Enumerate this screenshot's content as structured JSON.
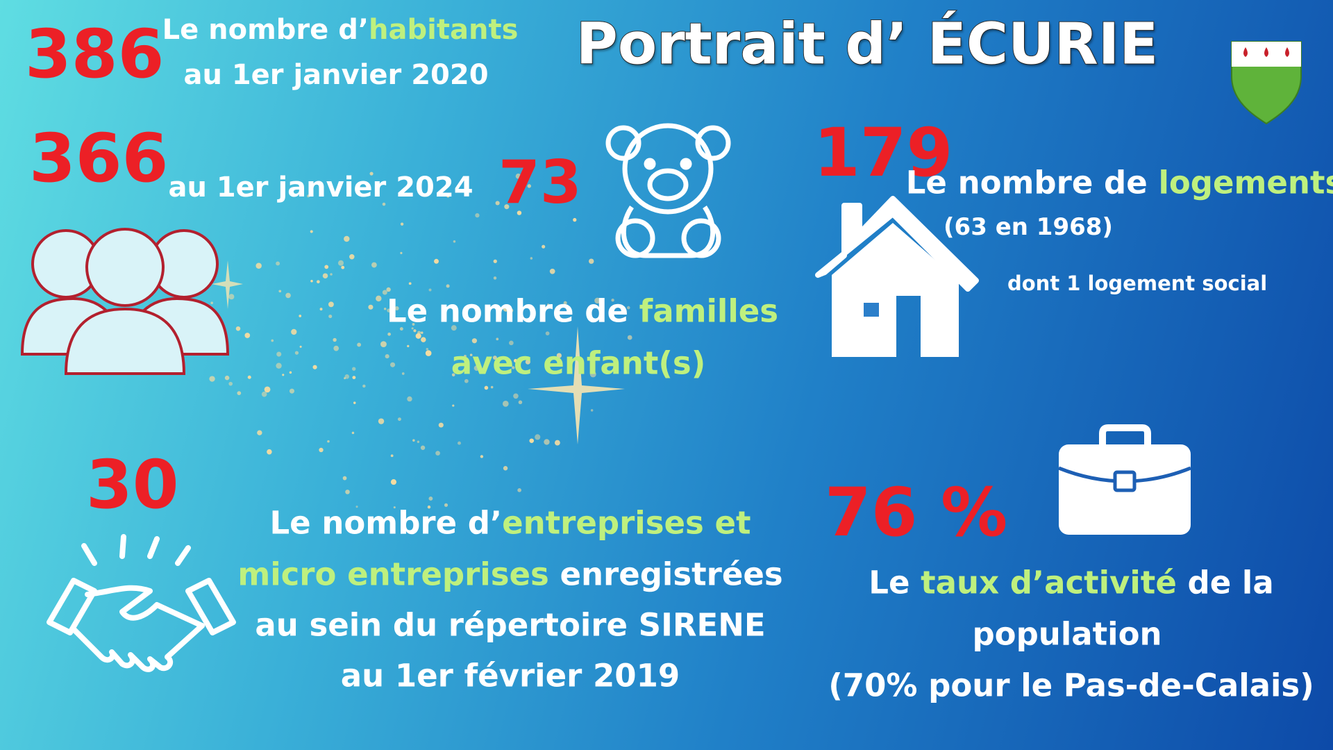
{
  "title": "Portrait d’ ÉCURIE",
  "population": {
    "count_2020": "386",
    "line1": [
      "Le nombre d’",
      "habitants"
    ],
    "line2": "au 1er janvier 2020",
    "count_2024": "366",
    "line3": "au 1er janvier 2024"
  },
  "families": {
    "count": "73",
    "line1": [
      "Le nombre de ",
      "familles"
    ],
    "line2": "avec enfant(s)"
  },
  "housing": {
    "count": "179",
    "line1": [
      "Le nombre de ",
      "logements"
    ],
    "line2": "(63 en 1968)",
    "line3": "dont 1 logement social"
  },
  "businesses": {
    "count": "30",
    "lines": [
      [
        "Le nombre d’",
        "entreprises et"
      ],
      [
        "micro entreprises",
        " enregistrées"
      ],
      [
        "au sein du répertoire SIRENE"
      ],
      [
        "au 1er février 2019"
      ]
    ]
  },
  "activity": {
    "count": "76 %",
    "lines": [
      [
        "Le ",
        "taux d’activité",
        " de la"
      ],
      [
        "population"
      ],
      [
        "(70% pour le Pas-de-Calais)"
      ]
    ]
  }
}
